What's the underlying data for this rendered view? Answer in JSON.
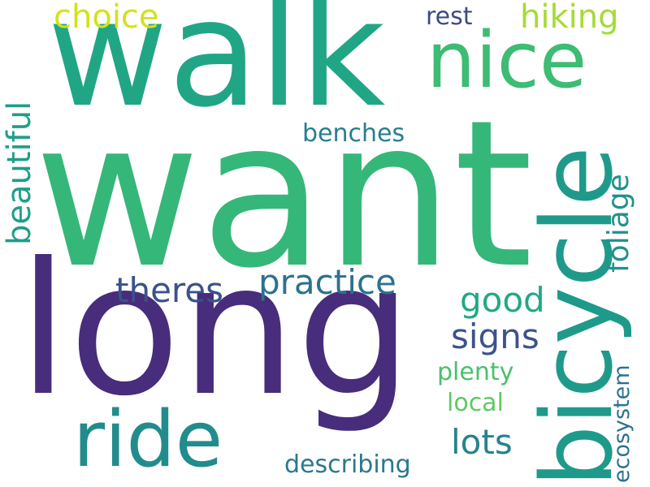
{
  "title": "Word cloud",
  "words": [
    {
      "id": "want",
      "text": "want",
      "color": "#35b779"
    },
    {
      "id": "walk",
      "text": "walk",
      "color": "#21a685"
    },
    {
      "id": "long",
      "text": "long",
      "color": "#472d7b"
    },
    {
      "id": "bicycle",
      "text": "bicycle",
      "color": "#1f9a8a"
    },
    {
      "id": "nice",
      "text": "nice",
      "color": "#3dbc74"
    },
    {
      "id": "ride",
      "text": "ride",
      "color": "#228c8d"
    },
    {
      "id": "practice",
      "text": "practice",
      "color": "#2c728e"
    },
    {
      "id": "theres",
      "text": "theres",
      "color": "#3b528b"
    },
    {
      "id": "choice",
      "text": "choice",
      "color": "#d2e21b"
    },
    {
      "id": "hiking",
      "text": "hiking",
      "color": "#a5db36"
    },
    {
      "id": "good",
      "text": "good",
      "color": "#22a884"
    },
    {
      "id": "signs",
      "text": "signs",
      "color": "#3b528b"
    },
    {
      "id": "lots",
      "text": "lots",
      "color": "#26828e"
    },
    {
      "id": "plenty",
      "text": "plenty",
      "color": "#4ac16d"
    },
    {
      "id": "local",
      "text": "local",
      "color": "#5ec962"
    },
    {
      "id": "rest",
      "text": "rest",
      "color": "#3e4989"
    },
    {
      "id": "benches",
      "text": "benches",
      "color": "#277f8e"
    },
    {
      "id": "describing",
      "text": "describing",
      "color": "#2a788e"
    },
    {
      "id": "beautiful",
      "text": "beautiful",
      "color": "#1f9e89"
    },
    {
      "id": "foliage",
      "text": "foliage",
      "color": "#21918c"
    },
    {
      "id": "ecosystem",
      "text": "ecosystem",
      "color": "#2c728e"
    }
  ]
}
